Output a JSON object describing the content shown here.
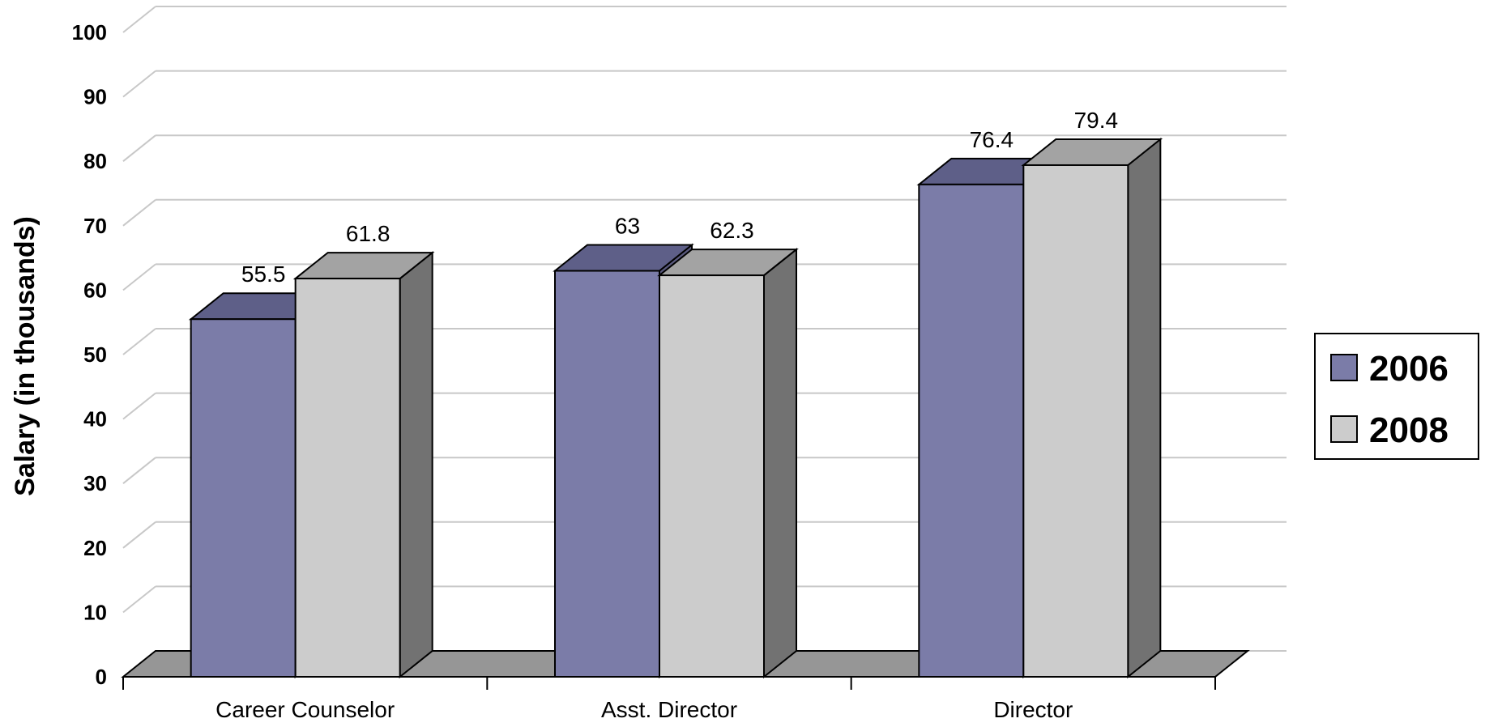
{
  "chart_data": {
    "type": "bar",
    "title": "",
    "xlabel": "",
    "ylabel": "Salary (in thousands)",
    "ylim": [
      0,
      100
    ],
    "yticks": [
      "0",
      "10",
      "20",
      "30",
      "40",
      "50",
      "60",
      "70",
      "80",
      "90",
      "100"
    ],
    "categories": [
      "Career Counselor",
      "Asst. Director",
      "Director"
    ],
    "series": [
      {
        "name": "2006",
        "values": [
          55.5,
          63,
          76.4
        ],
        "data_labels": [
          "55.5",
          "63",
          "76.4"
        ],
        "color": "#7b7ca8",
        "top_color": "#5e5f88",
        "side_color": "#5a5a7e"
      },
      {
        "name": "2008",
        "values": [
          61.8,
          62.3,
          79.4
        ],
        "data_labels": [
          "61.8",
          "62.3",
          "79.4"
        ],
        "color": "#cccccc",
        "top_color": "#a3a3a3",
        "side_color": "#727272"
      }
    ],
    "grid": true,
    "legend_position": "right",
    "style": "3d-clustered-column",
    "floor_color": "#969696"
  }
}
